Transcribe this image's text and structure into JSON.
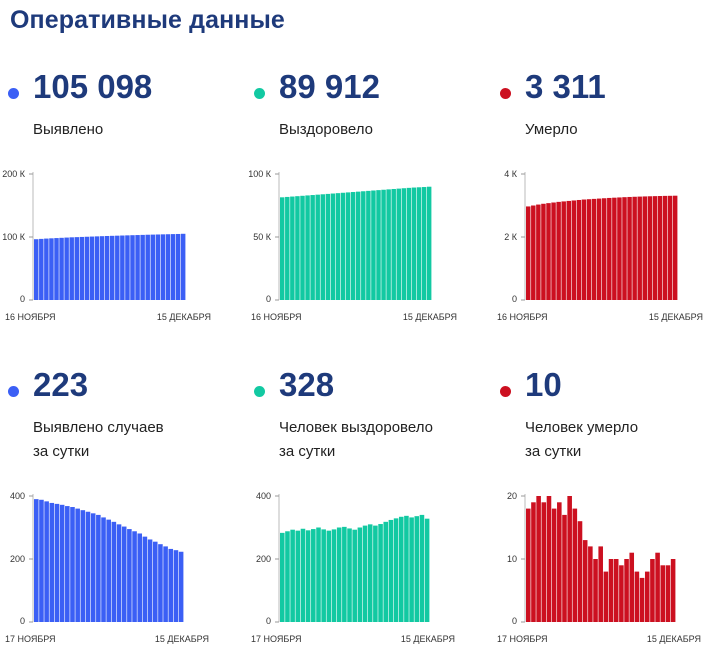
{
  "page_title": "Оперативные данные",
  "colors": {
    "blue": "#3b5ff5",
    "green": "#12c9a2",
    "red": "#cc1020",
    "title": "#1e3a7b"
  },
  "cards": [
    {
      "value": "105 098",
      "label_lines": [
        "Выявлено"
      ],
      "color": "#3b5ff5",
      "x_start_label": "16 НОЯБРЯ",
      "x_end_label": "15 ДЕКАБРЯ",
      "y_tick_labels": [
        "200 К",
        "100 К",
        "0"
      ]
    },
    {
      "value": "89 912",
      "label_lines": [
        "Выздоровело"
      ],
      "color": "#12c9a2",
      "x_start_label": "16 НОЯБРЯ",
      "x_end_label": "15 ДЕКАБРЯ",
      "y_tick_labels": [
        "100 К",
        "50 К",
        "0"
      ]
    },
    {
      "value": "3 311",
      "label_lines": [
        "Умерло"
      ],
      "color": "#cc1020",
      "x_start_label": "16 НОЯБРЯ",
      "x_end_label": "15 ДЕКАБРЯ",
      "y_tick_labels": [
        "4 К",
        "2 К",
        "0"
      ]
    },
    {
      "value": "223",
      "label_lines": [
        "Выявлено случаев",
        "за сутки"
      ],
      "color": "#3b5ff5",
      "x_start_label": "17 НОЯБРЯ",
      "x_end_label": "15 ДЕКАБРЯ",
      "y_tick_labels": [
        "400",
        "200",
        "0"
      ]
    },
    {
      "value": "328",
      "label_lines": [
        "Человек выздоровело",
        "за сутки"
      ],
      "color": "#12c9a2",
      "x_start_label": "17 НОЯБРЯ",
      "x_end_label": "15 ДЕКАБРЯ",
      "y_tick_labels": [
        "400",
        "200",
        "0"
      ]
    },
    {
      "value": "10",
      "label_lines": [
        "Человек умерло",
        "за сутки"
      ],
      "color": "#cc1020",
      "x_start_label": "17 НОЯБРЯ",
      "x_end_label": "15 ДЕКАБРЯ",
      "y_tick_labels": [
        "20",
        "10",
        "0"
      ]
    }
  ],
  "chart_data": [
    {
      "type": "bar",
      "ylim": [
        0,
        200000
      ],
      "yticks": [
        0,
        100000,
        200000
      ],
      "x_range": [
        "16 НОЯБРЯ",
        "15 ДЕКАБРЯ"
      ],
      "values": [
        96500,
        97000,
        97500,
        97900,
        98300,
        98700,
        99100,
        99500,
        99800,
        100100,
        100400,
        100700,
        101000,
        101300,
        101600,
        101850,
        102100,
        102350,
        102600,
        102850,
        103100,
        103350,
        103600,
        103800,
        104000,
        104200,
        104400,
        104600,
        104800,
        105098
      ]
    },
    {
      "type": "bar",
      "ylim": [
        0,
        100000
      ],
      "yticks": [
        0,
        50000,
        100000
      ],
      "x_range": [
        "16 НОЯБРЯ",
        "15 ДЕКАБРЯ"
      ],
      "values": [
        81500,
        81800,
        82100,
        82400,
        82700,
        83000,
        83300,
        83600,
        83900,
        84200,
        84500,
        84800,
        85100,
        85400,
        85700,
        86000,
        86300,
        86600,
        86900,
        87200,
        87500,
        87800,
        88100,
        88400,
        88700,
        89000,
        89250,
        89450,
        89650,
        89912
      ]
    },
    {
      "type": "bar",
      "ylim": [
        0,
        4000
      ],
      "yticks": [
        0,
        2000,
        4000
      ],
      "x_range": [
        "16 НОЯБРЯ",
        "15 ДЕКАБРЯ"
      ],
      "values": [
        2970,
        3000,
        3030,
        3055,
        3075,
        3095,
        3115,
        3130,
        3145,
        3160,
        3175,
        3190,
        3200,
        3210,
        3220,
        3230,
        3240,
        3248,
        3256,
        3264,
        3271,
        3277,
        3283,
        3288,
        3293,
        3297,
        3301,
        3305,
        3308,
        3311
      ]
    },
    {
      "type": "bar",
      "ylim": [
        0,
        400
      ],
      "yticks": [
        0,
        200,
        400
      ],
      "x_range": [
        "17 НОЯБРЯ",
        "15 ДЕКАБРЯ"
      ],
      "values": [
        390,
        388,
        383,
        378,
        375,
        372,
        368,
        365,
        360,
        355,
        350,
        345,
        340,
        332,
        325,
        318,
        310,
        303,
        295,
        288,
        281,
        271,
        262,
        255,
        247,
        240,
        232,
        228,
        223
      ]
    },
    {
      "type": "bar",
      "ylim": [
        0,
        400
      ],
      "yticks": [
        0,
        200,
        400
      ],
      "x_range": [
        "17 НОЯБРЯ",
        "15 ДЕКАБРЯ"
      ],
      "values": [
        283,
        288,
        293,
        290,
        296,
        291,
        295,
        300,
        294,
        290,
        294,
        300,
        302,
        297,
        293,
        300,
        306,
        310,
        306,
        311,
        318,
        324,
        329,
        334,
        337,
        332,
        336,
        340,
        328
      ]
    },
    {
      "type": "bar",
      "ylim": [
        0,
        20
      ],
      "yticks": [
        0,
        10,
        20
      ],
      "x_range": [
        "17 НОЯБРЯ",
        "15 ДЕКАБРЯ"
      ],
      "values": [
        18,
        19,
        20,
        19,
        20,
        18,
        19,
        17,
        20,
        18,
        16,
        13,
        12,
        10,
        12,
        8,
        10,
        10,
        9,
        10,
        11,
        8,
        7,
        8,
        10,
        11,
        9,
        9,
        10
      ]
    }
  ]
}
